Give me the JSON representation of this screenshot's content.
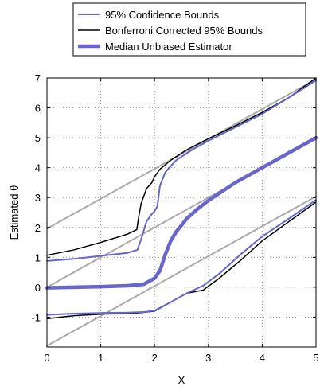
{
  "chart_data": {
    "type": "line",
    "xlabel": "X",
    "ylabel": "Estimated θ",
    "xlim": [
      0,
      5
    ],
    "ylim": [
      -2,
      7
    ],
    "xticks": [
      0,
      1,
      2,
      3,
      4,
      5
    ],
    "yticks": [
      -1,
      0,
      1,
      2,
      3,
      4,
      5,
      6,
      7
    ],
    "grid": true,
    "legend_position": "top-center",
    "legend": [
      {
        "label": "95% Confidence Bounds",
        "color": "#6666cc",
        "width": 2
      },
      {
        "label": "Bonferroni Corrected 95% Bounds",
        "color": "#000000",
        "width": 1.5
      },
      {
        "label": "Median Unbiased Estimator",
        "color": "#6666cc",
        "width": 4.5
      }
    ],
    "series": [
      {
        "color": "#aaaaaa",
        "width": 2,
        "points": [
          [
            0,
            1.96
          ],
          [
            5,
            6.96
          ]
        ]
      },
      {
        "color": "#aaaaaa",
        "width": 2,
        "points": [
          [
            0,
            0
          ],
          [
            5,
            5
          ]
        ]
      },
      {
        "color": "#aaaaaa",
        "width": 2,
        "points": [
          [
            0,
            -1.96
          ],
          [
            5,
            3.04
          ]
        ]
      },
      {
        "color": "#000000",
        "width": 1.5,
        "points": [
          [
            0,
            1.07
          ],
          [
            0.5,
            1.25
          ],
          [
            1.0,
            1.5
          ],
          [
            1.5,
            1.78
          ],
          [
            1.67,
            1.93
          ],
          [
            1.7,
            2.3
          ],
          [
            1.75,
            2.8
          ],
          [
            1.85,
            3.3
          ],
          [
            1.95,
            3.5
          ],
          [
            2.0,
            3.7
          ],
          [
            2.1,
            3.95
          ],
          [
            2.3,
            4.25
          ],
          [
            2.6,
            4.6
          ],
          [
            3.0,
            4.97
          ],
          [
            3.5,
            5.4
          ],
          [
            4.0,
            5.85
          ],
          [
            4.5,
            6.35
          ],
          [
            5.0,
            7.0
          ]
        ]
      },
      {
        "color": "#000000",
        "width": 1.5,
        "points": [
          [
            0,
            -1.05
          ],
          [
            0.5,
            -0.95
          ],
          [
            1.0,
            -0.9
          ],
          [
            1.5,
            -0.88
          ],
          [
            1.75,
            -0.85
          ],
          [
            2.0,
            -0.8
          ],
          [
            2.3,
            -0.5
          ],
          [
            2.6,
            -0.2
          ],
          [
            2.9,
            -0.1
          ],
          [
            3.2,
            0.3
          ],
          [
            3.6,
            0.9
          ],
          [
            4.0,
            1.55
          ],
          [
            4.5,
            2.2
          ],
          [
            5.0,
            2.85
          ]
        ]
      },
      {
        "color": "#6666cc",
        "width": 2,
        "points": [
          [
            0,
            0.88
          ],
          [
            0.5,
            0.95
          ],
          [
            1.0,
            1.05
          ],
          [
            1.5,
            1.15
          ],
          [
            1.68,
            1.25
          ],
          [
            1.75,
            1.6
          ],
          [
            1.85,
            2.2
          ],
          [
            1.95,
            2.45
          ],
          [
            2.0,
            2.55
          ],
          [
            2.05,
            2.7
          ],
          [
            2.1,
            3.4
          ],
          [
            2.2,
            3.85
          ],
          [
            2.4,
            4.25
          ],
          [
            2.7,
            4.6
          ],
          [
            3.0,
            4.9
          ],
          [
            3.5,
            5.35
          ],
          [
            4.0,
            5.8
          ],
          [
            4.5,
            6.35
          ],
          [
            5.0,
            6.92
          ]
        ]
      },
      {
        "color": "#6666cc",
        "width": 2,
        "points": [
          [
            0,
            -0.92
          ],
          [
            0.5,
            -0.88
          ],
          [
            1.0,
            -0.86
          ],
          [
            1.5,
            -0.85
          ],
          [
            1.8,
            -0.83
          ],
          [
            2.0,
            -0.78
          ],
          [
            2.3,
            -0.5
          ],
          [
            2.6,
            -0.2
          ],
          [
            2.9,
            0.05
          ],
          [
            3.2,
            0.45
          ],
          [
            3.6,
            1.1
          ],
          [
            4.0,
            1.7
          ],
          [
            4.5,
            2.3
          ],
          [
            5.0,
            2.92
          ]
        ]
      },
      {
        "color": "#6666cc",
        "width": 4.5,
        "points": [
          [
            0,
            -0.02
          ],
          [
            0.5,
            0.0
          ],
          [
            1.0,
            0.02
          ],
          [
            1.5,
            0.05
          ],
          [
            1.8,
            0.1
          ],
          [
            2.0,
            0.3
          ],
          [
            2.1,
            0.55
          ],
          [
            2.2,
            1.1
          ],
          [
            2.3,
            1.55
          ],
          [
            2.4,
            1.85
          ],
          [
            2.6,
            2.3
          ],
          [
            2.8,
            2.62
          ],
          [
            3.0,
            2.9
          ],
          [
            3.5,
            3.5
          ],
          [
            4.0,
            4.0
          ],
          [
            4.5,
            4.5
          ],
          [
            5.0,
            5.0
          ]
        ]
      }
    ]
  }
}
